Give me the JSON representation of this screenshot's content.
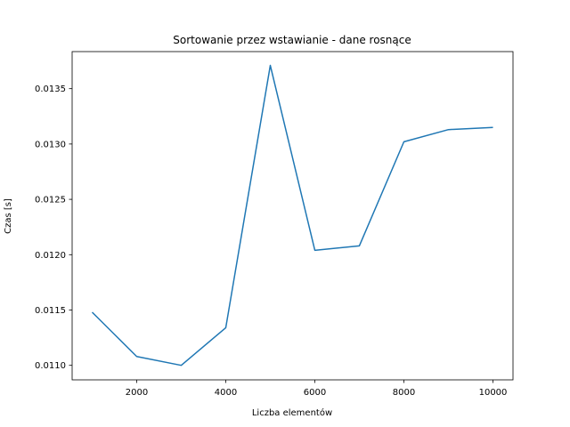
{
  "chart_data": {
    "type": "line",
    "title": "Sortowanie przez wstawianie - dane rosnące",
    "xlabel": "Liczba elementów",
    "ylabel": "Czas [s]",
    "x": [
      1000,
      2000,
      3000,
      4000,
      5000,
      6000,
      7000,
      8000,
      9000,
      10000
    ],
    "series": [
      {
        "color": "#1f77b4",
        "values": [
          0.01148,
          0.01108,
          0.011,
          0.01134,
          0.01371,
          0.01204,
          0.01208,
          0.01302,
          0.01313,
          0.01315
        ]
      }
    ],
    "xlim": [
      550,
      10450
    ],
    "ylim": [
      0.010869,
      0.013835
    ],
    "x_ticks": [
      2000,
      4000,
      6000,
      8000,
      10000
    ],
    "x_tick_labels": [
      "2000",
      "4000",
      "6000",
      "8000",
      "10000"
    ],
    "y_ticks": [
      0.011,
      0.0115,
      0.012,
      0.0125,
      0.013,
      0.0135
    ],
    "y_tick_labels": [
      "0.0110",
      "0.0115",
      "0.0120",
      "0.0125",
      "0.0130",
      "0.0135"
    ],
    "grid": false,
    "legend": false
  }
}
